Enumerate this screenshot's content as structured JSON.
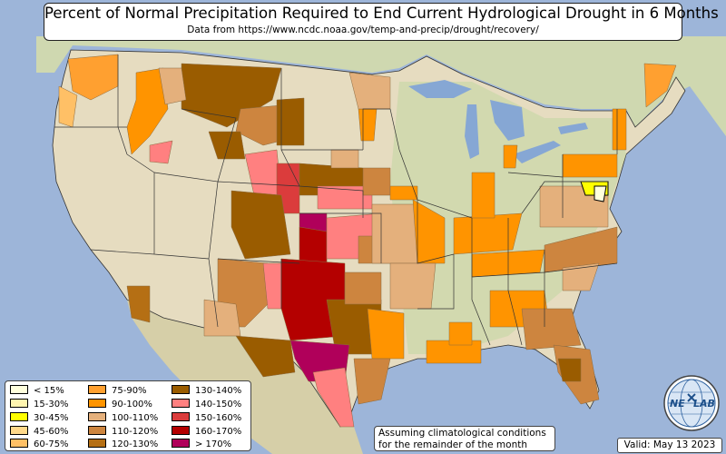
{
  "title": "Percent of Normal Precipitation Required to End Current Hydrological Drought in 6 Months",
  "subtitle": "Data from https://www.ncdc.noaa.gov/temp-and-precip/drought/recovery/",
  "legend": {
    "items": [
      {
        "label": "< 15%",
        "color": "#ffffdd"
      },
      {
        "label": "15-30%",
        "color": "#fff5b0"
      },
      {
        "label": "30-45%",
        "color": "#ffff00"
      },
      {
        "label": "45-60%",
        "color": "#ffd98a"
      },
      {
        "label": "60-75%",
        "color": "#ffc066"
      },
      {
        "label": "75-90%",
        "color": "#ffa030"
      },
      {
        "label": "90-100%",
        "color": "#ff9400"
      },
      {
        "label": "100-110%",
        "color": "#e4b07c"
      },
      {
        "label": "110-120%",
        "color": "#cd853f"
      },
      {
        "label": "120-130%",
        "color": "#b56f14"
      },
      {
        "label": "130-140%",
        "color": "#9a5c00"
      },
      {
        "label": "140-150%",
        "color": "#ff8080"
      },
      {
        "label": "150-160%",
        "color": "#db3c3c"
      },
      {
        "label": "160-170%",
        "color": "#b40000"
      },
      {
        "label": "> 170%",
        "color": "#b0005a"
      }
    ]
  },
  "note": {
    "line1": "Assuming climatological conditions",
    "line2": "for the remainder of the month"
  },
  "valid": "Valid: May 13 2023",
  "logo": {
    "text_left": "NE",
    "text_right": "LAB",
    "icon": "nexlab-globe-logo"
  },
  "colors": {
    "ocean": "#9db5d9",
    "land": "#e6dcc0",
    "land_green": "#c9d7a8",
    "lake": "#86a7d4"
  }
}
